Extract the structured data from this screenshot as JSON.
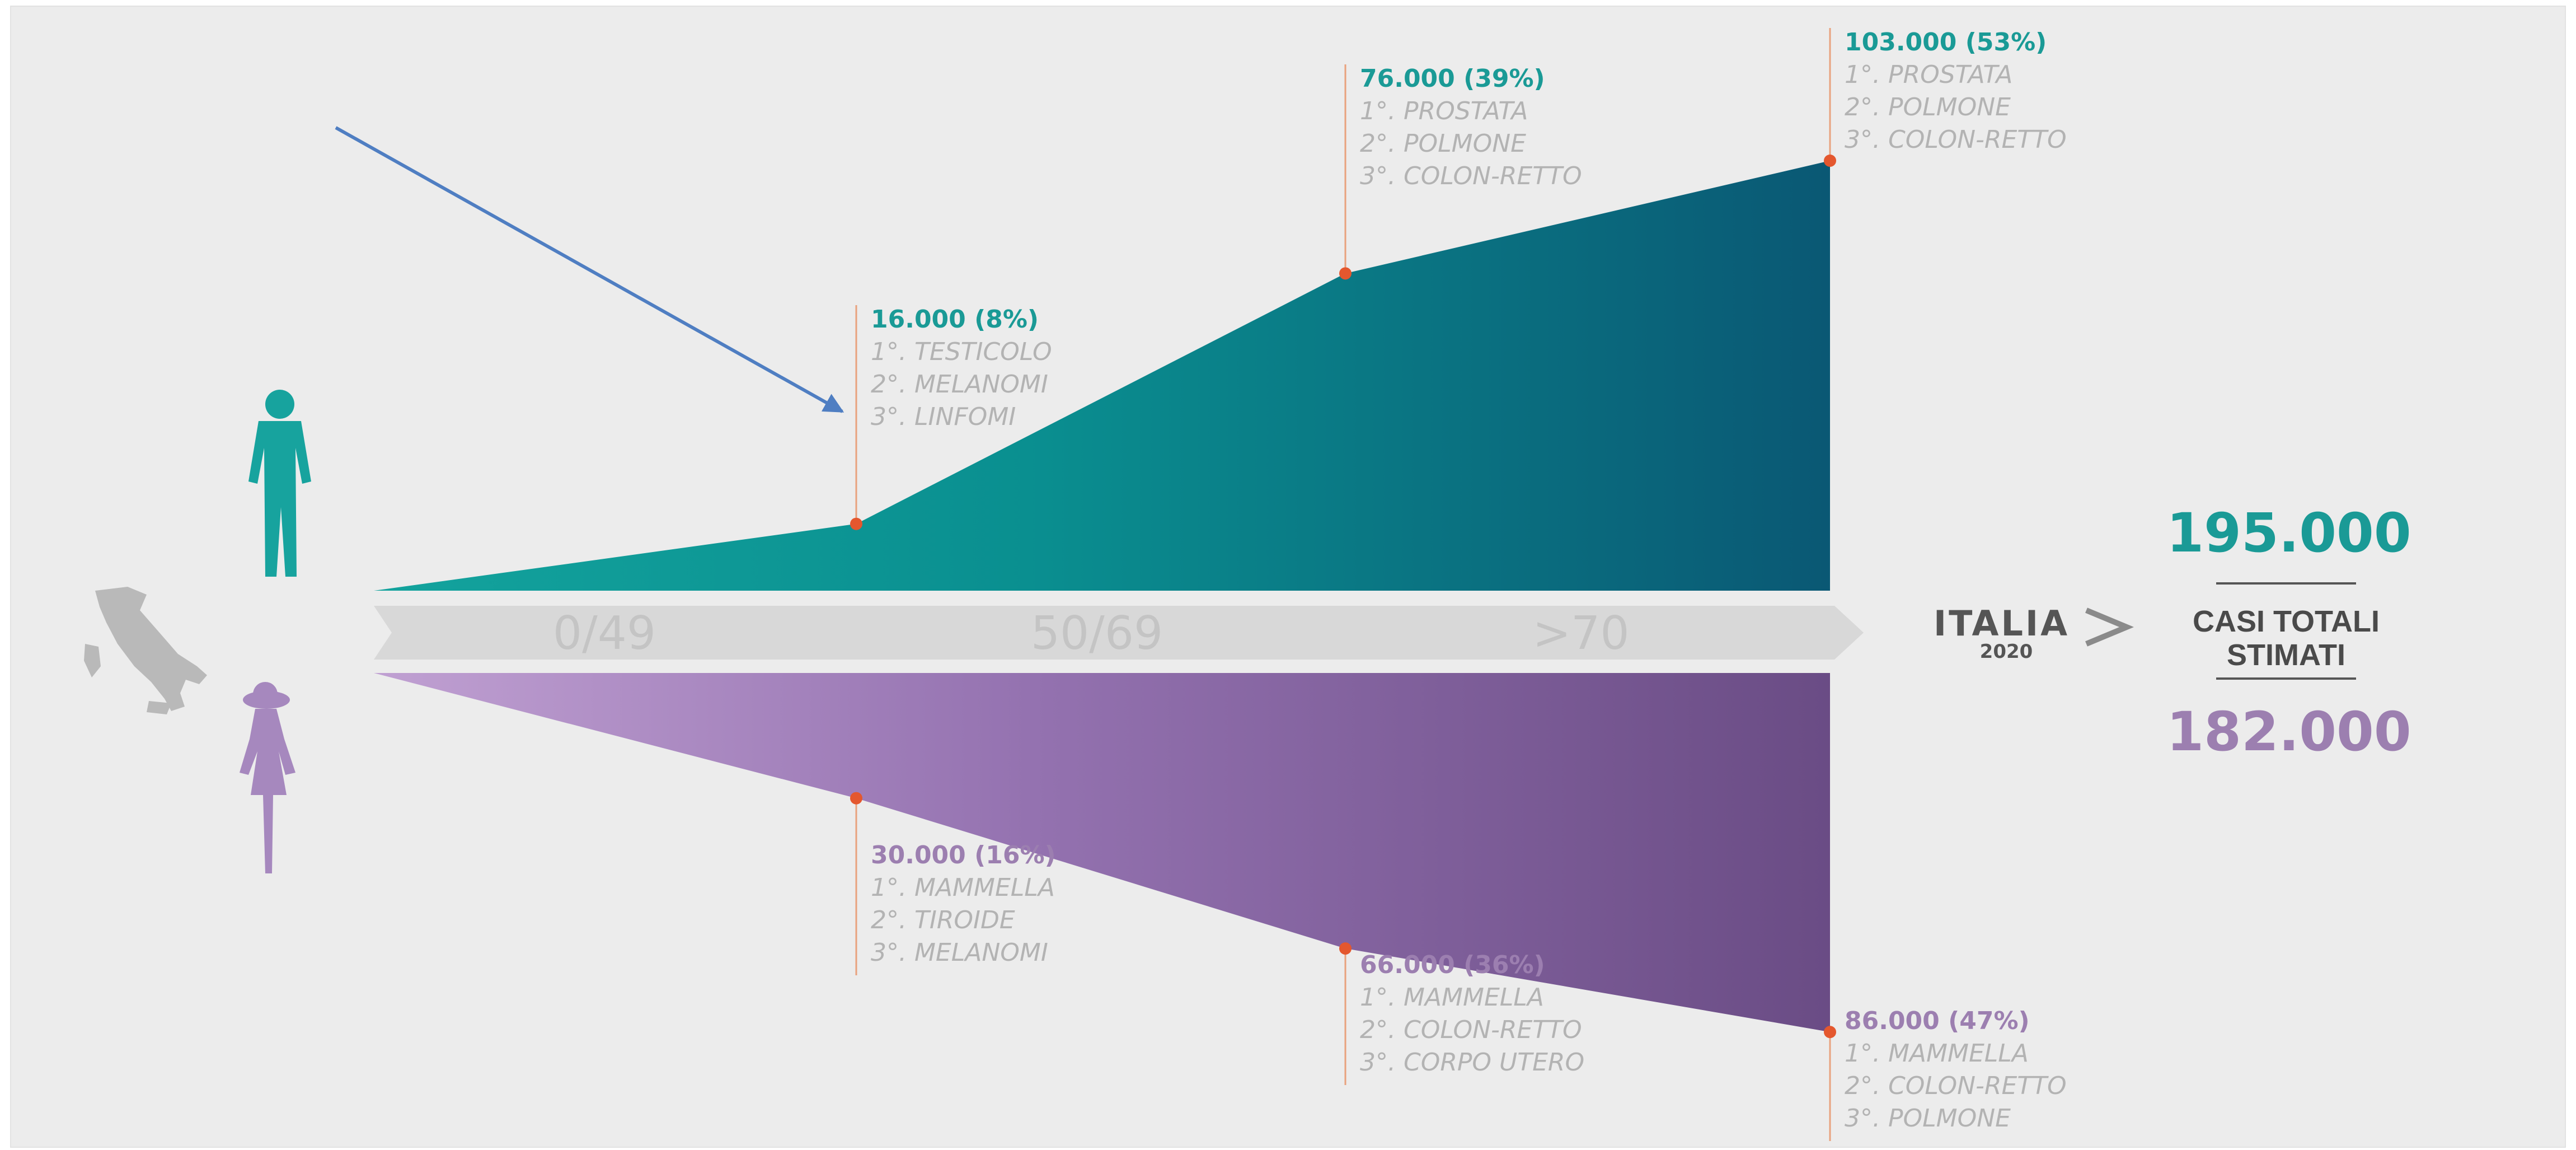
{
  "chart_data": {
    "type": "area",
    "categories": [
      "0/49",
      "50/69",
      ">70"
    ],
    "country": "ITALIA",
    "year": "2020",
    "totals_label": [
      "CASI TOTALI",
      "STIMATI"
    ],
    "series": [
      {
        "id": "male",
        "total": "195.000",
        "color": "#0e8f8d",
        "values": [
          16000,
          76000,
          103000
        ],
        "value_labels": [
          "16.000 (8%)",
          "76.000 (39%)",
          "103.000 (53%)"
        ],
        "ranks": [
          [
            "1°. TESTICOLO",
            "2°. MELANOMI",
            "3°. LINFOMI"
          ],
          [
            "1°. PROSTATA",
            "2°. POLMONE",
            "3°. COLON-RETTO"
          ],
          [
            "1°. PROSTATA",
            "2°. POLMONE",
            "3°. COLON-RETTO"
          ]
        ]
      },
      {
        "id": "female",
        "total": "182.000",
        "color": "#9b78b3",
        "values": [
          30000,
          66000,
          86000
        ],
        "value_labels": [
          "30.000 (16%)",
          "66.000 (36%)",
          "86.000 (47%)"
        ],
        "ranks": [
          [
            "1°. MAMMELLA",
            "2°. TIROIDE",
            "3°. MELANOMI"
          ],
          [
            "1°. MAMMELLA",
            "2°. COLON-RETTO",
            "3°. CORPO UTERO"
          ],
          [
            "1°. MAMMELLA",
            "2°. COLON-RETTO",
            "3°. POLMONE"
          ]
        ]
      }
    ]
  },
  "colors": {
    "male_text": "#1a9a96",
    "female_text": "#9c7fb0",
    "marker": "#e4572e",
    "arrow": "#4f7ec2",
    "band": "#d8d8d8"
  }
}
